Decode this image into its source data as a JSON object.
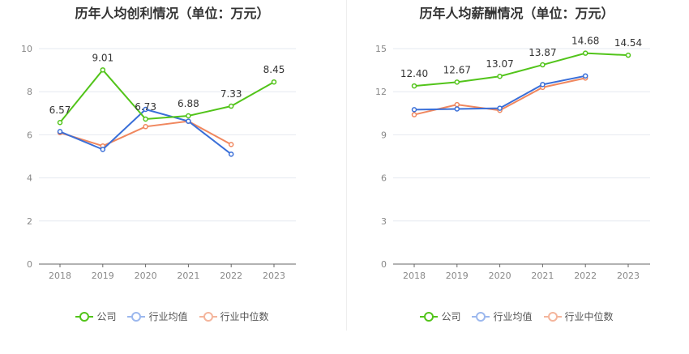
{
  "colors": {
    "company": "#52c41a",
    "industry_avg": "#3a6fd8",
    "industry_median": "#f0875e",
    "legend_company": "#52c41a",
    "legend_avg": "#9cb8ee",
    "legend_median": "#f4b59c"
  },
  "chart_data": [
    {
      "type": "line",
      "title": "历年人均创利情况（单位：万元）",
      "categories": [
        "2018",
        "2019",
        "2020",
        "2021",
        "2022",
        "2023"
      ],
      "ylim": [
        0,
        10
      ],
      "yticks": [
        "0",
        "2",
        "4",
        "6",
        "8",
        "10"
      ],
      "grid": true,
      "legend_position": "bottom",
      "series": [
        {
          "name": "公司",
          "values": [
            6.57,
            9.01,
            6.73,
            6.88,
            7.33,
            8.45
          ],
          "labels": [
            "6.57",
            "9.01",
            "6.73",
            "6.88",
            "7.33",
            "8.45"
          ]
        },
        {
          "name": "行业均值",
          "values": [
            6.15,
            5.32,
            7.18,
            6.63,
            5.1,
            null
          ]
        },
        {
          "name": "行业中位数",
          "values": [
            6.1,
            5.48,
            6.38,
            6.63,
            5.55,
            null
          ]
        }
      ]
    },
    {
      "type": "line",
      "title": "历年人均薪酬情况（单位：万元）",
      "categories": [
        "2018",
        "2019",
        "2020",
        "2021",
        "2022",
        "2023"
      ],
      "ylim": [
        0,
        15
      ],
      "yticks": [
        "0",
        "3",
        "6",
        "9",
        "12",
        "15"
      ],
      "grid": true,
      "legend_position": "bottom",
      "series": [
        {
          "name": "公司",
          "values": [
            12.4,
            12.67,
            13.07,
            13.87,
            14.68,
            14.54
          ],
          "labels": [
            "12.40",
            "12.67",
            "13.07",
            "13.87",
            "14.68",
            "14.54"
          ]
        },
        {
          "name": "行业均值",
          "values": [
            10.75,
            10.8,
            10.85,
            12.5,
            13.1,
            null
          ]
        },
        {
          "name": "行业中位数",
          "values": [
            10.4,
            11.1,
            10.7,
            12.3,
            12.95,
            null
          ]
        }
      ]
    }
  ],
  "legend": {
    "company": "公司",
    "industry_avg": "行业均值",
    "industry_median": "行业中位数"
  }
}
